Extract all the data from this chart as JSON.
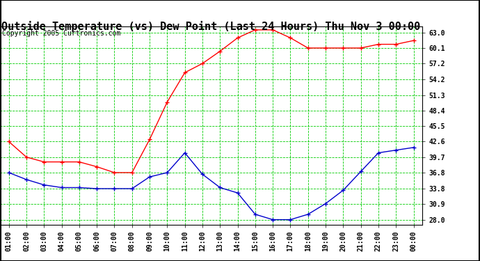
{
  "title": "Outside Temperature (vs) Dew Point (Last 24 Hours) Thu Nov 3 00:00",
  "copyright": "Copyright 2005 Curtronics.com",
  "x_labels": [
    "01:00",
    "02:00",
    "03:00",
    "04:00",
    "05:00",
    "06:00",
    "07:00",
    "08:00",
    "09:00",
    "10:00",
    "11:00",
    "12:00",
    "13:00",
    "14:00",
    "15:00",
    "16:00",
    "17:00",
    "18:00",
    "19:00",
    "20:00",
    "21:00",
    "22:00",
    "23:00",
    "00:00"
  ],
  "temp_values": [
    42.6,
    39.7,
    38.8,
    38.8,
    38.8,
    37.9,
    36.8,
    36.8,
    43.0,
    50.0,
    55.5,
    57.2,
    59.5,
    62.0,
    63.5,
    63.5,
    62.0,
    60.1,
    60.1,
    60.1,
    60.1,
    60.8,
    60.8,
    61.5
  ],
  "dew_values": [
    36.8,
    35.5,
    34.5,
    34.0,
    34.0,
    33.8,
    33.8,
    33.8,
    36.0,
    36.8,
    40.5,
    36.5,
    34.0,
    33.0,
    29.0,
    28.0,
    28.0,
    29.0,
    31.0,
    33.5,
    37.0,
    40.5,
    41.0,
    41.5
  ],
  "temp_color": "#ff0000",
  "dew_color": "#0000cc",
  "grid_color": "#00cc00",
  "bg_color": "#ffffff",
  "plot_bg_color": "#ffffff",
  "y_ticks": [
    28.0,
    30.9,
    33.8,
    36.8,
    39.7,
    42.6,
    45.5,
    48.4,
    51.3,
    54.2,
    57.2,
    60.1,
    63.0
  ],
  "y_min": 27.1,
  "y_max": 64.2,
  "title_fontsize": 11,
  "axis_fontsize": 7,
  "copyright_fontsize": 7
}
